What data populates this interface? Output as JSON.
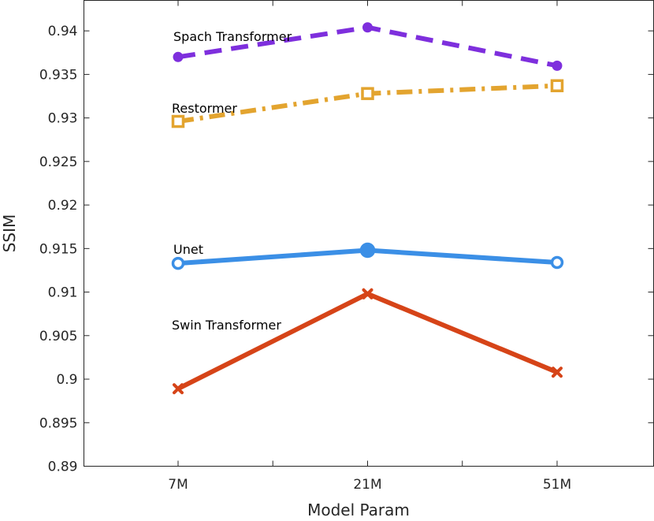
{
  "chart_data": {
    "type": "line",
    "title": "",
    "xlabel": "Model Param",
    "ylabel": "SSIM",
    "categories": [
      "7M",
      "21M",
      "51M"
    ],
    "ylim": [
      0.89,
      0.9435
    ],
    "yticks": [
      0.89,
      0.895,
      0.9,
      0.905,
      0.91,
      0.915,
      0.92,
      0.925,
      0.93,
      0.935,
      0.94
    ],
    "ytick_labels": [
      "0.89",
      "0.895",
      "0.9",
      "0.905",
      "0.91",
      "0.915",
      "0.92",
      "0.925",
      "0.93",
      "0.935",
      "0.94"
    ],
    "grid": false,
    "series": [
      {
        "name": "Spach Transformer",
        "values": [
          0.937,
          0.9404,
          0.936
        ],
        "color": "#7e2fdd",
        "line_style": "dashed",
        "marker": "circle"
      },
      {
        "name": "Restormer",
        "values": [
          0.9296,
          0.9328,
          0.9337
        ],
        "color": "#e3a42f",
        "line_style": "dash-dot",
        "marker": "square"
      },
      {
        "name": "Unet",
        "values": [
          0.9133,
          0.9148,
          0.9134
        ],
        "color": "#3b8fe6",
        "line_style": "solid",
        "marker": "circle"
      },
      {
        "name": "Swin Transformer",
        "values": [
          0.8989,
          0.9098,
          0.9008
        ],
        "color": "#d64418",
        "line_style": "solid",
        "marker": "x"
      }
    ]
  }
}
